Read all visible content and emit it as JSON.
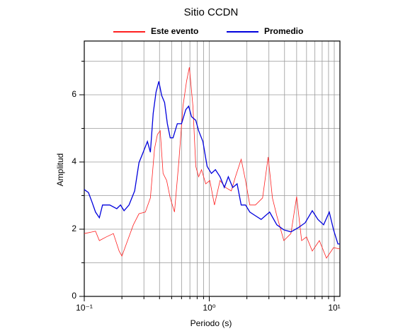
{
  "chart_data": {
    "type": "line",
    "title": "Sitio CCDN",
    "xlabel": "Periodo (s)",
    "ylabel": "Amplitud",
    "xscale": "log",
    "xlim": [
      0.1,
      11.1
    ],
    "ylim": [
      0,
      7.6
    ],
    "xticks": [
      {
        "value": 0.1,
        "label": "10⁻¹"
      },
      {
        "value": 1,
        "label": "10⁰"
      },
      {
        "value": 10,
        "label": "10¹"
      }
    ],
    "yticks": [
      0,
      2,
      4,
      6
    ],
    "minor_yticks": [
      1,
      3,
      5,
      7
    ],
    "grid": true,
    "legend": "top",
    "series": [
      {
        "name": "Este evento",
        "color": "#ff2020",
        "x": [
          0.1,
          0.123,
          0.132,
          0.15,
          0.171,
          0.19,
          0.2,
          0.222,
          0.247,
          0.274,
          0.308,
          0.338,
          0.365,
          0.385,
          0.405,
          0.427,
          0.456,
          0.487,
          0.527,
          0.57,
          0.616,
          0.658,
          0.693,
          0.74,
          0.78,
          0.822,
          0.867,
          0.937,
          1.01,
          1.1,
          1.22,
          1.35,
          1.5,
          1.62,
          1.8,
          1.95,
          2.11,
          2.34,
          2.67,
          2.96,
          3.2,
          3.47,
          3.95,
          4.5,
          5.0,
          5.48,
          6.0,
          6.67,
          7.6,
          8.66,
          9.87,
          11.1
        ],
        "values": [
          1.87,
          1.94,
          1.66,
          1.77,
          1.87,
          1.35,
          1.2,
          1.66,
          2.13,
          2.46,
          2.51,
          2.93,
          4.4,
          4.82,
          4.93,
          3.66,
          3.45,
          2.93,
          2.51,
          3.98,
          5.66,
          6.4,
          6.82,
          5.66,
          3.87,
          3.56,
          3.77,
          3.35,
          3.45,
          2.72,
          3.45,
          3.24,
          3.14,
          3.56,
          4.08,
          3.45,
          2.72,
          2.72,
          2.93,
          4.15,
          2.93,
          2.4,
          1.66,
          1.87,
          2.97,
          1.66,
          1.77,
          1.35,
          1.66,
          1.14,
          1.45,
          1.41
        ]
      },
      {
        "name": "Promedio",
        "color": "#0000dd",
        "x": [
          0.1,
          0.108,
          0.115,
          0.123,
          0.132,
          0.14,
          0.16,
          0.182,
          0.195,
          0.208,
          0.228,
          0.253,
          0.274,
          0.296,
          0.32,
          0.338,
          0.356,
          0.375,
          0.395,
          0.416,
          0.439,
          0.462,
          0.487,
          0.513,
          0.555,
          0.6,
          0.649,
          0.684,
          0.721,
          0.78,
          0.822,
          0.889,
          0.961,
          1.04,
          1.12,
          1.22,
          1.32,
          1.42,
          1.54,
          1.67,
          1.8,
          1.95,
          2.11,
          2.34,
          2.6,
          3.04,
          3.47,
          3.95,
          4.5,
          5.13,
          5.85,
          6.67,
          7.4,
          8.22,
          9.12,
          9.87,
          10.7,
          11.1
        ],
        "values": [
          3.18,
          3.09,
          2.82,
          2.51,
          2.34,
          2.72,
          2.72,
          2.61,
          2.72,
          2.55,
          2.72,
          3.14,
          3.98,
          4.29,
          4.61,
          4.29,
          5.45,
          6.08,
          6.4,
          5.98,
          5.77,
          5.14,
          4.72,
          4.72,
          5.14,
          5.14,
          5.56,
          5.66,
          5.35,
          5.24,
          4.93,
          4.61,
          3.87,
          3.66,
          3.77,
          3.56,
          3.24,
          3.56,
          3.24,
          3.35,
          2.72,
          2.72,
          2.51,
          2.4,
          2.29,
          2.51,
          2.13,
          1.98,
          1.92,
          2.04,
          2.19,
          2.55,
          2.29,
          2.13,
          2.51,
          1.98,
          1.56,
          1.56
        ]
      }
    ]
  }
}
